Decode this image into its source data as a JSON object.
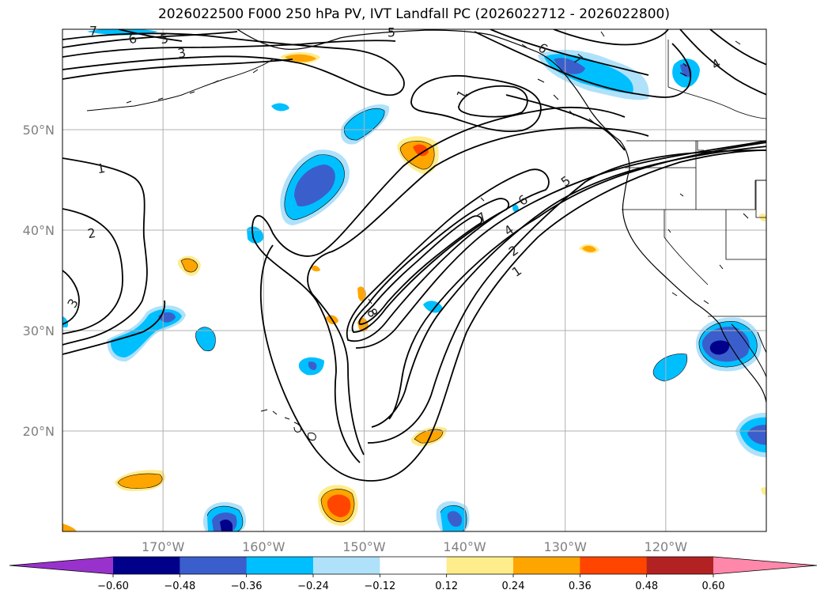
{
  "title": "2026022500 F000 250 hPa PV, IVT Landfall PC (2026022712 - 2026022800)",
  "map": {
    "lon_range": [
      -180,
      -110
    ],
    "lat_range": [
      10,
      60
    ],
    "lat_ticks": [
      {
        "value": 50,
        "label": "50°N"
      },
      {
        "value": 40,
        "label": "40°N"
      },
      {
        "value": 30,
        "label": "30°N"
      },
      {
        "value": 20,
        "label": "20°N"
      }
    ],
    "lon_ticks": [
      {
        "value": -170,
        "label": "170°W"
      },
      {
        "value": -160,
        "label": "160°W"
      },
      {
        "value": -150,
        "label": "150°W"
      },
      {
        "value": -140,
        "label": "140°W"
      },
      {
        "value": -130,
        "label": "130°W"
      },
      {
        "value": -120,
        "label": "120°W"
      }
    ],
    "grid": true
  },
  "colorbar": {
    "levels": [
      -0.6,
      -0.48,
      -0.36,
      -0.24,
      -0.12,
      0.12,
      0.24,
      0.36,
      0.48,
      0.6
    ],
    "labels": [
      "−0.60",
      "−0.48",
      "−0.36",
      "−0.24",
      "−0.12",
      "0.12",
      "0.24",
      "0.36",
      "0.48",
      "0.60"
    ],
    "colors": [
      "#9932cc",
      "#00008b",
      "#3a5fcd",
      "#00bfff",
      "#afe1fa",
      "#ffffff",
      "#ffec8b",
      "#ffa500",
      "#ff4500",
      "#b22222",
      "#ff88aa"
    ],
    "extend": "both"
  },
  "contour_labels": [
    "1",
    "2",
    "3",
    "4",
    "5",
    "6",
    "7",
    "8"
  ]
}
